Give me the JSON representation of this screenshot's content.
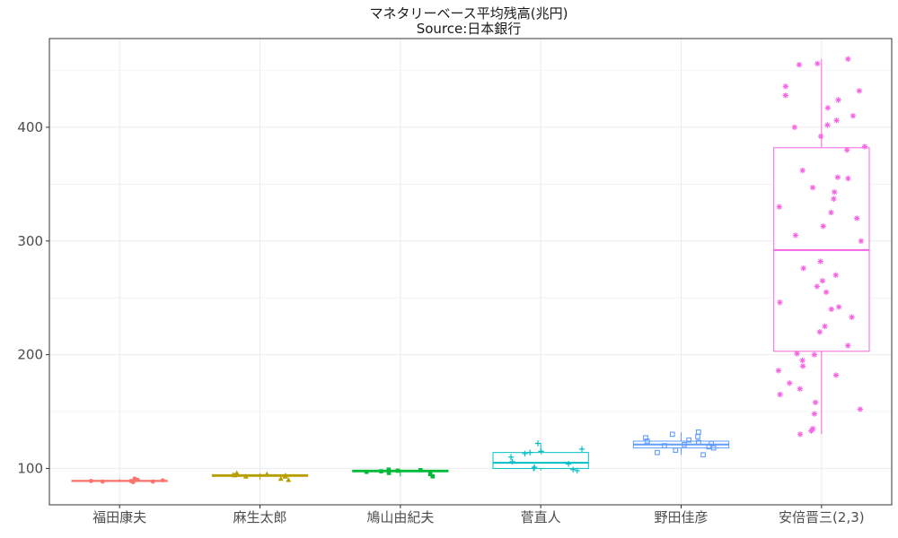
{
  "chart_data": {
    "type": "boxplot",
    "title": "マネタリーベース平均残高(兆円)",
    "subtitle": "Source:日本銀行",
    "xlabel": "",
    "ylabel": "",
    "ylim": [
      68,
      478
    ],
    "yticks": [
      100,
      200,
      300,
      400
    ],
    "grid": true,
    "legend": "none",
    "categories": [
      "福田康夫",
      "麻生太郎",
      "鳩山由紀夫",
      "菅直人",
      "野田佳彦",
      "安倍晋三(2,3)"
    ],
    "colors": [
      "#F8766D",
      "#B79F00",
      "#00BA38",
      "#00BFC4",
      "#619CFF",
      "#F564E3"
    ],
    "markers": [
      "circle",
      "triangle",
      "square",
      "plus",
      "square-open",
      "asterisk"
    ],
    "boxes": [
      {
        "min": 88,
        "q1": 88.5,
        "median": 89,
        "q3": 89.5,
        "max": 91
      },
      {
        "min": 90,
        "q1": 93,
        "median": 94,
        "q3": 94.5,
        "max": 96
      },
      {
        "min": 93,
        "q1": 97,
        "median": 98,
        "q3": 98.5,
        "max": 99
      },
      {
        "min": 98,
        "q1": 100,
        "median": 105,
        "q3": 114,
        "max": 122
      },
      {
        "min": 112,
        "q1": 118,
        "median": 121,
        "q3": 124,
        "max": 132
      },
      {
        "min": 130,
        "q1": 203,
        "median": 292,
        "q3": 382,
        "max": 460
      }
    ],
    "points": [
      [
        88,
        88.5,
        89,
        89.5,
        90,
        91,
        89,
        88.5,
        90
      ],
      [
        90,
        91,
        93,
        94,
        94.5,
        95,
        96,
        94,
        93
      ],
      [
        93,
        95,
        97,
        98,
        98.5,
        99,
        97.5,
        96
      ],
      [
        98,
        99,
        100,
        101,
        104,
        106,
        110,
        113,
        114,
        115,
        117,
        122
      ],
      [
        112,
        114,
        116,
        118,
        119,
        120,
        121,
        122,
        123,
        124,
        125,
        127,
        128,
        130,
        132
      ],
      [
        130,
        133,
        135,
        148,
        152,
        158,
        165,
        170,
        175,
        182,
        186,
        190,
        195,
        200,
        201,
        208,
        220,
        225,
        233,
        240,
        242,
        246,
        255,
        260,
        265,
        270,
        276,
        282,
        300,
        305,
        313,
        320,
        325,
        330,
        337,
        343,
        347,
        355,
        356,
        362,
        380,
        383,
        392,
        400,
        402,
        406,
        410,
        417,
        424,
        428,
        432,
        436,
        455,
        456,
        460
      ]
    ]
  }
}
